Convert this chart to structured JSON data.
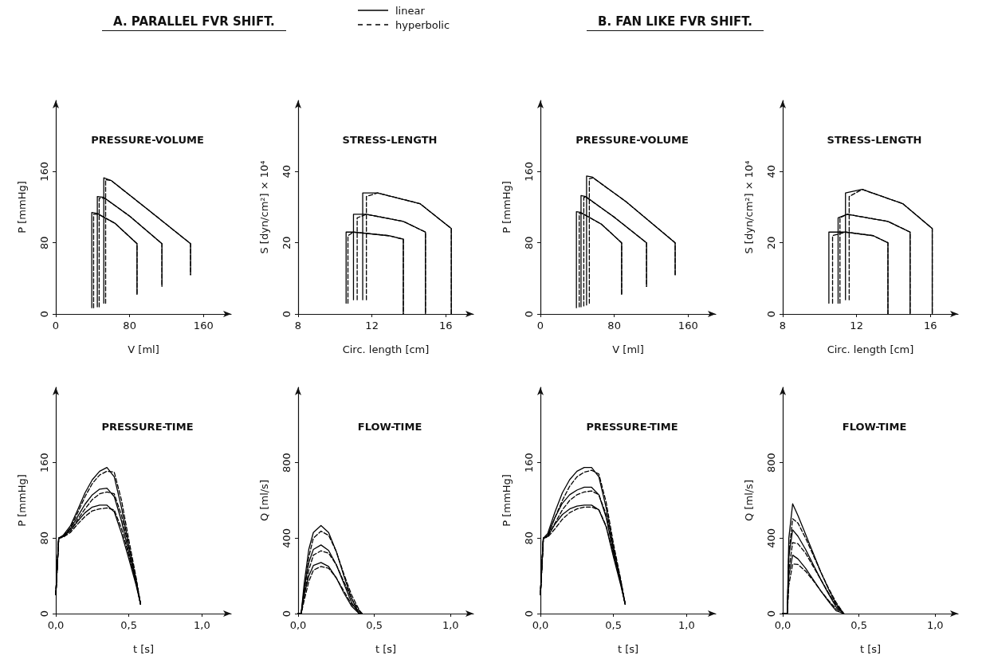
{
  "chart_data": [
    {
      "type": "line",
      "title": "PRESSURE-VOLUME",
      "xlabel": "V [ml]",
      "ylabel": "P [mmHg]",
      "annotations": [
        "A. PARALLEL FVR SHIFT."
      ],
      "legend": "top right",
      "xlim": [
        0,
        190
      ],
      "xticks": [
        0,
        80,
        160
      ],
      "ylim": [
        0,
        240
      ],
      "yticks": [
        0,
        80,
        160
      ],
      "series": [
        {
          "name": "linear",
          "color": "#000000",
          "line_style": "solid",
          "x": [
            39,
            39,
            45,
            64,
            88,
            88
          ],
          "values": [
            7,
            114,
            113,
            102,
            79,
            22
          ]
        },
        {
          "name": "hyperbolic",
          "color": "#000000",
          "line_style": "dashed",
          "x": [
            41,
            41,
            46,
            64,
            88,
            88
          ],
          "values": [
            7,
            112,
            112,
            102,
            79,
            22
          ]
        },
        {
          "color": "#000000",
          "line_style": "solid",
          "x": [
            45,
            45,
            52,
            80,
            115,
            115
          ],
          "values": [
            8,
            132,
            131,
            110,
            79,
            31
          ]
        },
        {
          "color": "#000000",
          "line_style": "dashed",
          "x": [
            47,
            47,
            53,
            80,
            115,
            115
          ],
          "values": [
            8,
            130,
            130,
            110,
            79,
            31
          ]
        },
        {
          "color": "#000000",
          "line_style": "solid",
          "x": [
            52,
            52,
            60,
            99,
            146,
            146
          ],
          "values": [
            12,
            153,
            150,
            118,
            79,
            44
          ]
        },
        {
          "color": "#000000",
          "line_style": "dashed",
          "x": [
            54,
            54,
            60,
            99,
            146,
            146
          ],
          "values": [
            12,
            151,
            150,
            118,
            79,
            44
          ]
        }
      ]
    },
    {
      "type": "line",
      "title": "STRESS-LENGTH",
      "xlabel": "Circ. length [cm]",
      "ylabel": "S [dyn/cm²] × 10⁴",
      "xlim": [
        8,
        17.5
      ],
      "xticks": [
        8,
        12,
        16
      ],
      "ylim": [
        0,
        60
      ],
      "yticks": [
        0,
        20,
        40
      ],
      "series": [
        {
          "color": "#000000",
          "line_style": "solid",
          "x": [
            10.6,
            10.6,
            11.0,
            12.9,
            13.7,
            13.7
          ],
          "values": [
            3,
            23,
            23,
            22,
            21,
            0
          ]
        },
        {
          "color": "#000000",
          "line_style": "dashed",
          "x": [
            10.7,
            10.7,
            11.0,
            12.9,
            13.7,
            13.7
          ],
          "values": [
            3,
            22,
            23,
            22,
            21,
            0
          ]
        },
        {
          "color": "#000000",
          "line_style": "solid",
          "x": [
            11.0,
            11.0,
            11.7,
            13.7,
            14.9,
            14.9
          ],
          "values": [
            4,
            28,
            28,
            26,
            23,
            0
          ]
        },
        {
          "color": "#000000",
          "line_style": "dashed",
          "x": [
            11.2,
            11.2,
            11.7,
            13.7,
            14.9,
            14.9
          ],
          "values": [
            4,
            27,
            28,
            26,
            23,
            0
          ]
        },
        {
          "color": "#000000",
          "line_style": "solid",
          "x": [
            11.5,
            11.5,
            12.3,
            14.6,
            16.3,
            16.3
          ],
          "values": [
            4,
            34,
            34,
            31,
            24,
            0
          ]
        },
        {
          "color": "#000000",
          "line_style": "dashed",
          "x": [
            11.7,
            11.7,
            12.3,
            14.6,
            16.3,
            16.3
          ],
          "values": [
            4,
            33,
            34,
            31,
            24,
            0
          ]
        }
      ]
    },
    {
      "type": "line",
      "title": "PRESSURE-VOLUME",
      "xlabel": "V [ml]",
      "ylabel": "P [mmHg]",
      "annotations": [
        "B. FAN LIKE FVR SHIFT."
      ],
      "xlim": [
        0,
        190
      ],
      "xticks": [
        0,
        80,
        160
      ],
      "ylim": [
        0,
        240
      ],
      "yticks": [
        0,
        80,
        160
      ],
      "series": [
        {
          "color": "#000000",
          "line_style": "solid",
          "x": [
            39,
            39,
            44,
            66,
            88,
            88
          ],
          "values": [
            7,
            115,
            114,
            101,
            80,
            22
          ]
        },
        {
          "color": "#000000",
          "line_style": "dashed",
          "x": [
            42,
            42,
            45,
            66,
            88,
            88
          ],
          "values": [
            8,
            113,
            113,
            101,
            80,
            22
          ]
        },
        {
          "color": "#000000",
          "line_style": "solid",
          "x": [
            44,
            44,
            49,
            81,
            115,
            115
          ],
          "values": [
            8,
            133,
            132,
            108,
            80,
            31
          ]
        },
        {
          "color": "#000000",
          "line_style": "dashed",
          "x": [
            47,
            47,
            50,
            81,
            115,
            115
          ],
          "values": [
            9,
            131,
            131,
            108,
            80,
            31
          ]
        },
        {
          "color": "#000000",
          "line_style": "solid",
          "x": [
            50,
            50,
            56,
            93,
            146,
            146
          ],
          "values": [
            10,
            155,
            154,
            126,
            80,
            44
          ]
        },
        {
          "color": "#000000",
          "line_style": "dashed",
          "x": [
            53,
            53,
            57,
            93,
            146,
            146
          ],
          "values": [
            12,
            152,
            153,
            126,
            80,
            44
          ]
        }
      ]
    },
    {
      "type": "line",
      "title": "STRESS-LENGTH",
      "xlabel": "Circ. length [cm]",
      "ylabel": "S [dyn/cm²] × 10⁴",
      "xlim": [
        8,
        17.5
      ],
      "xticks": [
        8,
        12,
        16
      ],
      "ylim": [
        0,
        60
      ],
      "yticks": [
        0,
        20,
        40
      ],
      "series": [
        {
          "color": "#000000",
          "line_style": "solid",
          "x": [
            10.5,
            10.5,
            11.4,
            12.9,
            13.7,
            13.7
          ],
          "values": [
            3,
            23,
            23,
            22,
            20,
            0
          ]
        },
        {
          "color": "#000000",
          "line_style": "dashed",
          "x": [
            10.7,
            10.7,
            11.4,
            12.9,
            13.7,
            13.7
          ],
          "values": [
            3,
            22,
            23,
            22,
            20,
            0
          ]
        },
        {
          "color": "#000000",
          "line_style": "solid",
          "x": [
            11.0,
            11.0,
            11.5,
            13.7,
            14.9,
            14.9
          ],
          "values": [
            3,
            27,
            28,
            26,
            23,
            0
          ]
        },
        {
          "color": "#000000",
          "line_style": "dashed",
          "x": [
            11.1,
            11.1,
            11.5,
            13.7,
            14.9,
            14.9
          ],
          "values": [
            3,
            27,
            28,
            26,
            23,
            0
          ]
        },
        {
          "color": "#000000",
          "line_style": "solid",
          "x": [
            11.4,
            11.4,
            12.3,
            14.5,
            16.1,
            16.1
          ],
          "values": [
            4,
            34,
            35,
            31,
            24,
            0
          ]
        },
        {
          "color": "#000000",
          "line_style": "dashed",
          "x": [
            11.6,
            11.6,
            12.3,
            14.5,
            16.1,
            16.1
          ],
          "values": [
            4,
            33,
            35,
            31,
            24,
            0
          ]
        }
      ]
    },
    {
      "type": "line",
      "title": "PRESSURE-TIME",
      "xlabel": "t [s]",
      "ylabel": "P [mmHg]",
      "xlim": [
        0,
        1.2
      ],
      "xticks": [
        {
          "value": 0,
          "label": "0,0"
        },
        {
          "value": 0.5,
          "label": "0,5"
        },
        {
          "value": 1,
          "label": "1,0"
        }
      ],
      "ylim": [
        0,
        240
      ],
      "yticks": [
        0,
        80,
        160
      ],
      "x": [
        0,
        0.02,
        0.05,
        0.1,
        0.15,
        0.2,
        0.25,
        0.3,
        0.35,
        0.4,
        0.45,
        0.5,
        0.55,
        0.58
      ],
      "series": [
        {
          "color": "#000000",
          "line_style": "solid",
          "values": [
            20,
            80,
            82,
            88,
            98,
            107,
            113,
            115,
            115,
            108,
            85,
            58,
            30,
            10
          ]
        },
        {
          "color": "#000000",
          "line_style": "dashed",
          "values": [
            20,
            80,
            81,
            86,
            95,
            103,
            109,
            111,
            112,
            110,
            90,
            62,
            32,
            10
          ]
        },
        {
          "color": "#000000",
          "line_style": "solid",
          "values": [
            20,
            80,
            82,
            90,
            103,
            116,
            126,
            132,
            133,
            124,
            98,
            65,
            33,
            10
          ]
        },
        {
          "color": "#000000",
          "line_style": "dashed",
          "values": [
            20,
            80,
            81,
            88,
            100,
            111,
            121,
            127,
            129,
            127,
            104,
            70,
            36,
            10
          ]
        },
        {
          "color": "#000000",
          "line_style": "solid",
          "values": [
            20,
            80,
            83,
            93,
            110,
            128,
            142,
            151,
            155,
            145,
            112,
            72,
            35,
            10
          ]
        },
        {
          "color": "#000000",
          "line_style": "dashed",
          "values": [
            20,
            80,
            82,
            91,
            107,
            124,
            138,
            147,
            151,
            150,
            120,
            78,
            38,
            10
          ]
        }
      ]
    },
    {
      "type": "line",
      "title": "FLOW-TIME",
      "xlabel": "t [s]",
      "ylabel": "Q [ml/s]",
      "xlim": [
        0,
        1.15
      ],
      "xticks": [
        {
          "value": 0,
          "label": "0,0"
        },
        {
          "value": 0.5,
          "label": "0,5"
        },
        {
          "value": 1,
          "label": "1,0"
        }
      ],
      "ylim": [
        0,
        1200
      ],
      "yticks": [
        0,
        400,
        800
      ],
      "x": [
        0,
        0.02,
        0.04,
        0.07,
        0.1,
        0.15,
        0.2,
        0.25,
        0.3,
        0.35,
        0.4,
        0.42
      ],
      "series": [
        {
          "color": "#000000",
          "line_style": "solid",
          "values": [
            0,
            0,
            100,
            200,
            255,
            271,
            250,
            190,
            110,
            40,
            0,
            0
          ]
        },
        {
          "color": "#000000",
          "line_style": "dashed",
          "values": [
            0,
            0,
            70,
            170,
            230,
            250,
            240,
            190,
            120,
            50,
            10,
            0
          ]
        },
        {
          "color": "#000000",
          "line_style": "solid",
          "values": [
            0,
            0,
            130,
            270,
            340,
            364,
            335,
            260,
            160,
            60,
            0,
            0
          ]
        },
        {
          "color": "#000000",
          "line_style": "dashed",
          "values": [
            0,
            0,
            90,
            230,
            310,
            333,
            320,
            260,
            170,
            80,
            15,
            0
          ]
        },
        {
          "color": "#000000",
          "line_style": "solid",
          "values": [
            0,
            0,
            160,
            340,
            430,
            467,
            430,
            330,
            200,
            80,
            0,
            0
          ]
        },
        {
          "color": "#000000",
          "line_style": "dashed",
          "values": [
            0,
            0,
            110,
            300,
            400,
            437,
            415,
            330,
            210,
            100,
            20,
            0
          ]
        }
      ]
    },
    {
      "type": "line",
      "title": "PRESSURE-TIME",
      "xlabel": "t [s]",
      "ylabel": "P [mmHg]",
      "xlim": [
        0,
        1.2
      ],
      "xticks": [
        {
          "value": 0,
          "label": "0,0"
        },
        {
          "value": 0.5,
          "label": "0,5"
        },
        {
          "value": 1,
          "label": "1,0"
        }
      ],
      "ylim": [
        0,
        240
      ],
      "yticks": [
        0,
        80,
        160
      ],
      "x": [
        0,
        0.02,
        0.05,
        0.1,
        0.15,
        0.2,
        0.25,
        0.3,
        0.35,
        0.4,
        0.45,
        0.5,
        0.55,
        0.58
      ],
      "series": [
        {
          "color": "#000000",
          "line_style": "solid",
          "values": [
            20,
            80,
            82,
            95,
            105,
            111,
            114,
            115,
            115,
            110,
            92,
            60,
            30,
            10
          ]
        },
        {
          "color": "#000000",
          "line_style": "dashed",
          "values": [
            20,
            80,
            81,
            90,
            100,
            107,
            111,
            113,
            113,
            110,
            93,
            62,
            32,
            10
          ]
        },
        {
          "color": "#000000",
          "line_style": "solid",
          "values": [
            20,
            80,
            83,
            102,
            117,
            126,
            131,
            134,
            134,
            126,
            102,
            65,
            32,
            10
          ]
        },
        {
          "color": "#000000",
          "line_style": "dashed",
          "values": [
            20,
            80,
            82,
            96,
            110,
            120,
            126,
            129,
            130,
            126,
            105,
            68,
            34,
            10
          ]
        },
        {
          "color": "#000000",
          "line_style": "solid",
          "values": [
            20,
            80,
            85,
            108,
            128,
            142,
            151,
            155,
            155,
            145,
            112,
            70,
            34,
            10
          ]
        },
        {
          "color": "#000000",
          "line_style": "dashed",
          "values": [
            20,
            80,
            83,
            102,
            120,
            135,
            145,
            150,
            152,
            148,
            118,
            74,
            36,
            10
          ]
        }
      ]
    },
    {
      "type": "line",
      "title": "FLOW-TIME",
      "xlabel": "t [s]",
      "ylabel": "Q [ml/s]",
      "xlim": [
        0,
        1.15
      ],
      "xticks": [
        {
          "value": 0,
          "label": "0,0"
        },
        {
          "value": 0.5,
          "label": "0,5"
        },
        {
          "value": 1,
          "label": "1,0"
        }
      ],
      "ylim": [
        0,
        1200
      ],
      "yticks": [
        0,
        400,
        800
      ],
      "x": [
        0,
        0.03,
        0.04,
        0.065,
        0.1,
        0.15,
        0.2,
        0.25,
        0.3,
        0.35,
        0.4
      ],
      "series": [
        {
          "color": "#000000",
          "line_style": "solid",
          "values": [
            0,
            0,
            200,
            310,
            290,
            240,
            180,
            120,
            65,
            15,
            0
          ]
        },
        {
          "color": "#000000",
          "line_style": "dashed",
          "values": [
            0,
            0,
            150,
            263,
            260,
            225,
            175,
            120,
            70,
            25,
            0
          ]
        },
        {
          "color": "#000000",
          "line_style": "solid",
          "values": [
            0,
            0,
            300,
            444,
            410,
            340,
            260,
            180,
            105,
            35,
            0
          ]
        },
        {
          "color": "#000000",
          "line_style": "dashed",
          "values": [
            0,
            0,
            230,
            377,
            370,
            320,
            250,
            180,
            110,
            45,
            0
          ]
        },
        {
          "color": "#000000",
          "line_style": "solid",
          "values": [
            0,
            0,
            400,
            582,
            520,
            420,
            320,
            220,
            130,
            50,
            0
          ]
        },
        {
          "color": "#000000",
          "line_style": "dashed",
          "values": [
            0,
            0,
            320,
            503,
            480,
            400,
            310,
            220,
            135,
            60,
            0
          ]
        }
      ]
    }
  ]
}
